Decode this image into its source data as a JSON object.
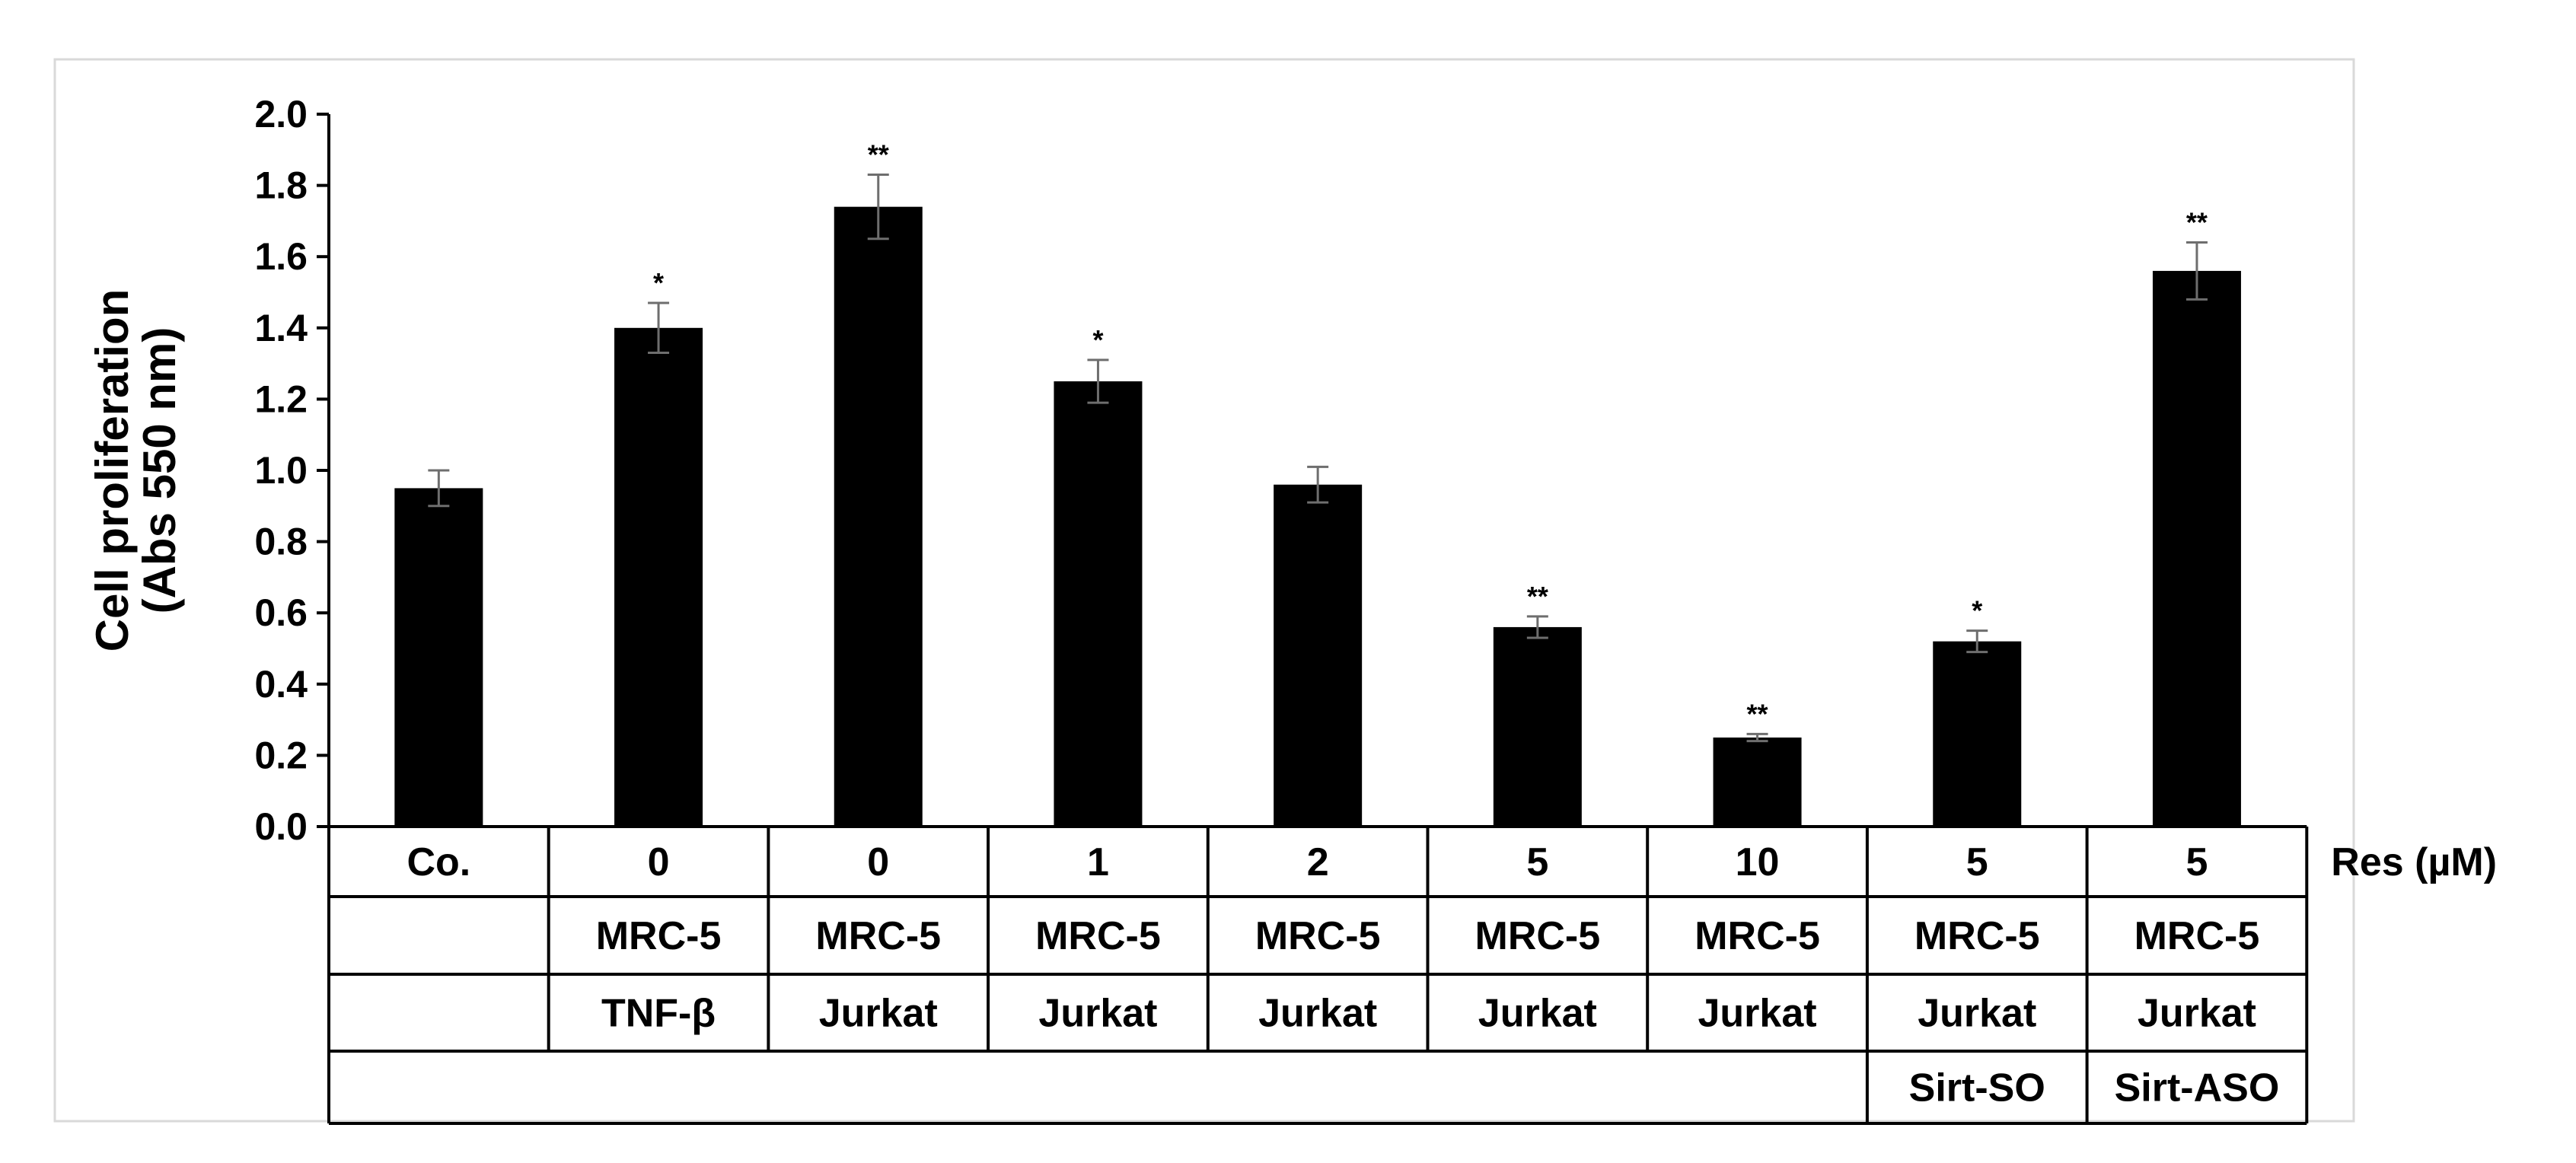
{
  "chart_data": {
    "type": "bar",
    "title": "",
    "ylabel_lines": [
      "Cell proliferation",
      "(Abs 550 nm)"
    ],
    "ylim": [
      0.0,
      2.0
    ],
    "yticks": [
      "0.0",
      "0.2",
      "0.4",
      "0.6",
      "0.8",
      "1.0",
      "1.2",
      "1.4",
      "1.6",
      "1.8",
      "2.0"
    ],
    "grid": false,
    "legend": "none",
    "bar_color": "#000000",
    "values": [
      0.95,
      1.4,
      1.74,
      1.25,
      0.96,
      0.56,
      0.25,
      0.52,
      1.56
    ],
    "errors": [
      0.05,
      0.07,
      0.09,
      0.06,
      0.05,
      0.03,
      0.01,
      0.03,
      0.08
    ],
    "significance": [
      "",
      "*",
      "**",
      "*",
      "",
      "**",
      "**",
      "*",
      "**"
    ],
    "table": {
      "rows": [
        [
          "Co.",
          "0",
          "0",
          "1",
          "2",
          "5",
          "10",
          "5",
          "5"
        ],
        [
          "",
          "MRC-5",
          "MRC-5",
          "MRC-5",
          "MRC-5",
          "MRC-5",
          "MRC-5",
          "MRC-5",
          "MRC-5"
        ],
        [
          "",
          "TNF-β",
          "Jurkat",
          "Jurkat",
          "Jurkat",
          "Jurkat",
          "Jurkat",
          "Jurkat",
          "Jurkat"
        ],
        [
          "",
          "",
          "",
          "",
          "",
          "",
          "",
          "Sirt-SO",
          "Sirt-ASO"
        ]
      ],
      "row_labels": [
        "Res (µM)",
        "",
        "",
        ""
      ]
    }
  }
}
